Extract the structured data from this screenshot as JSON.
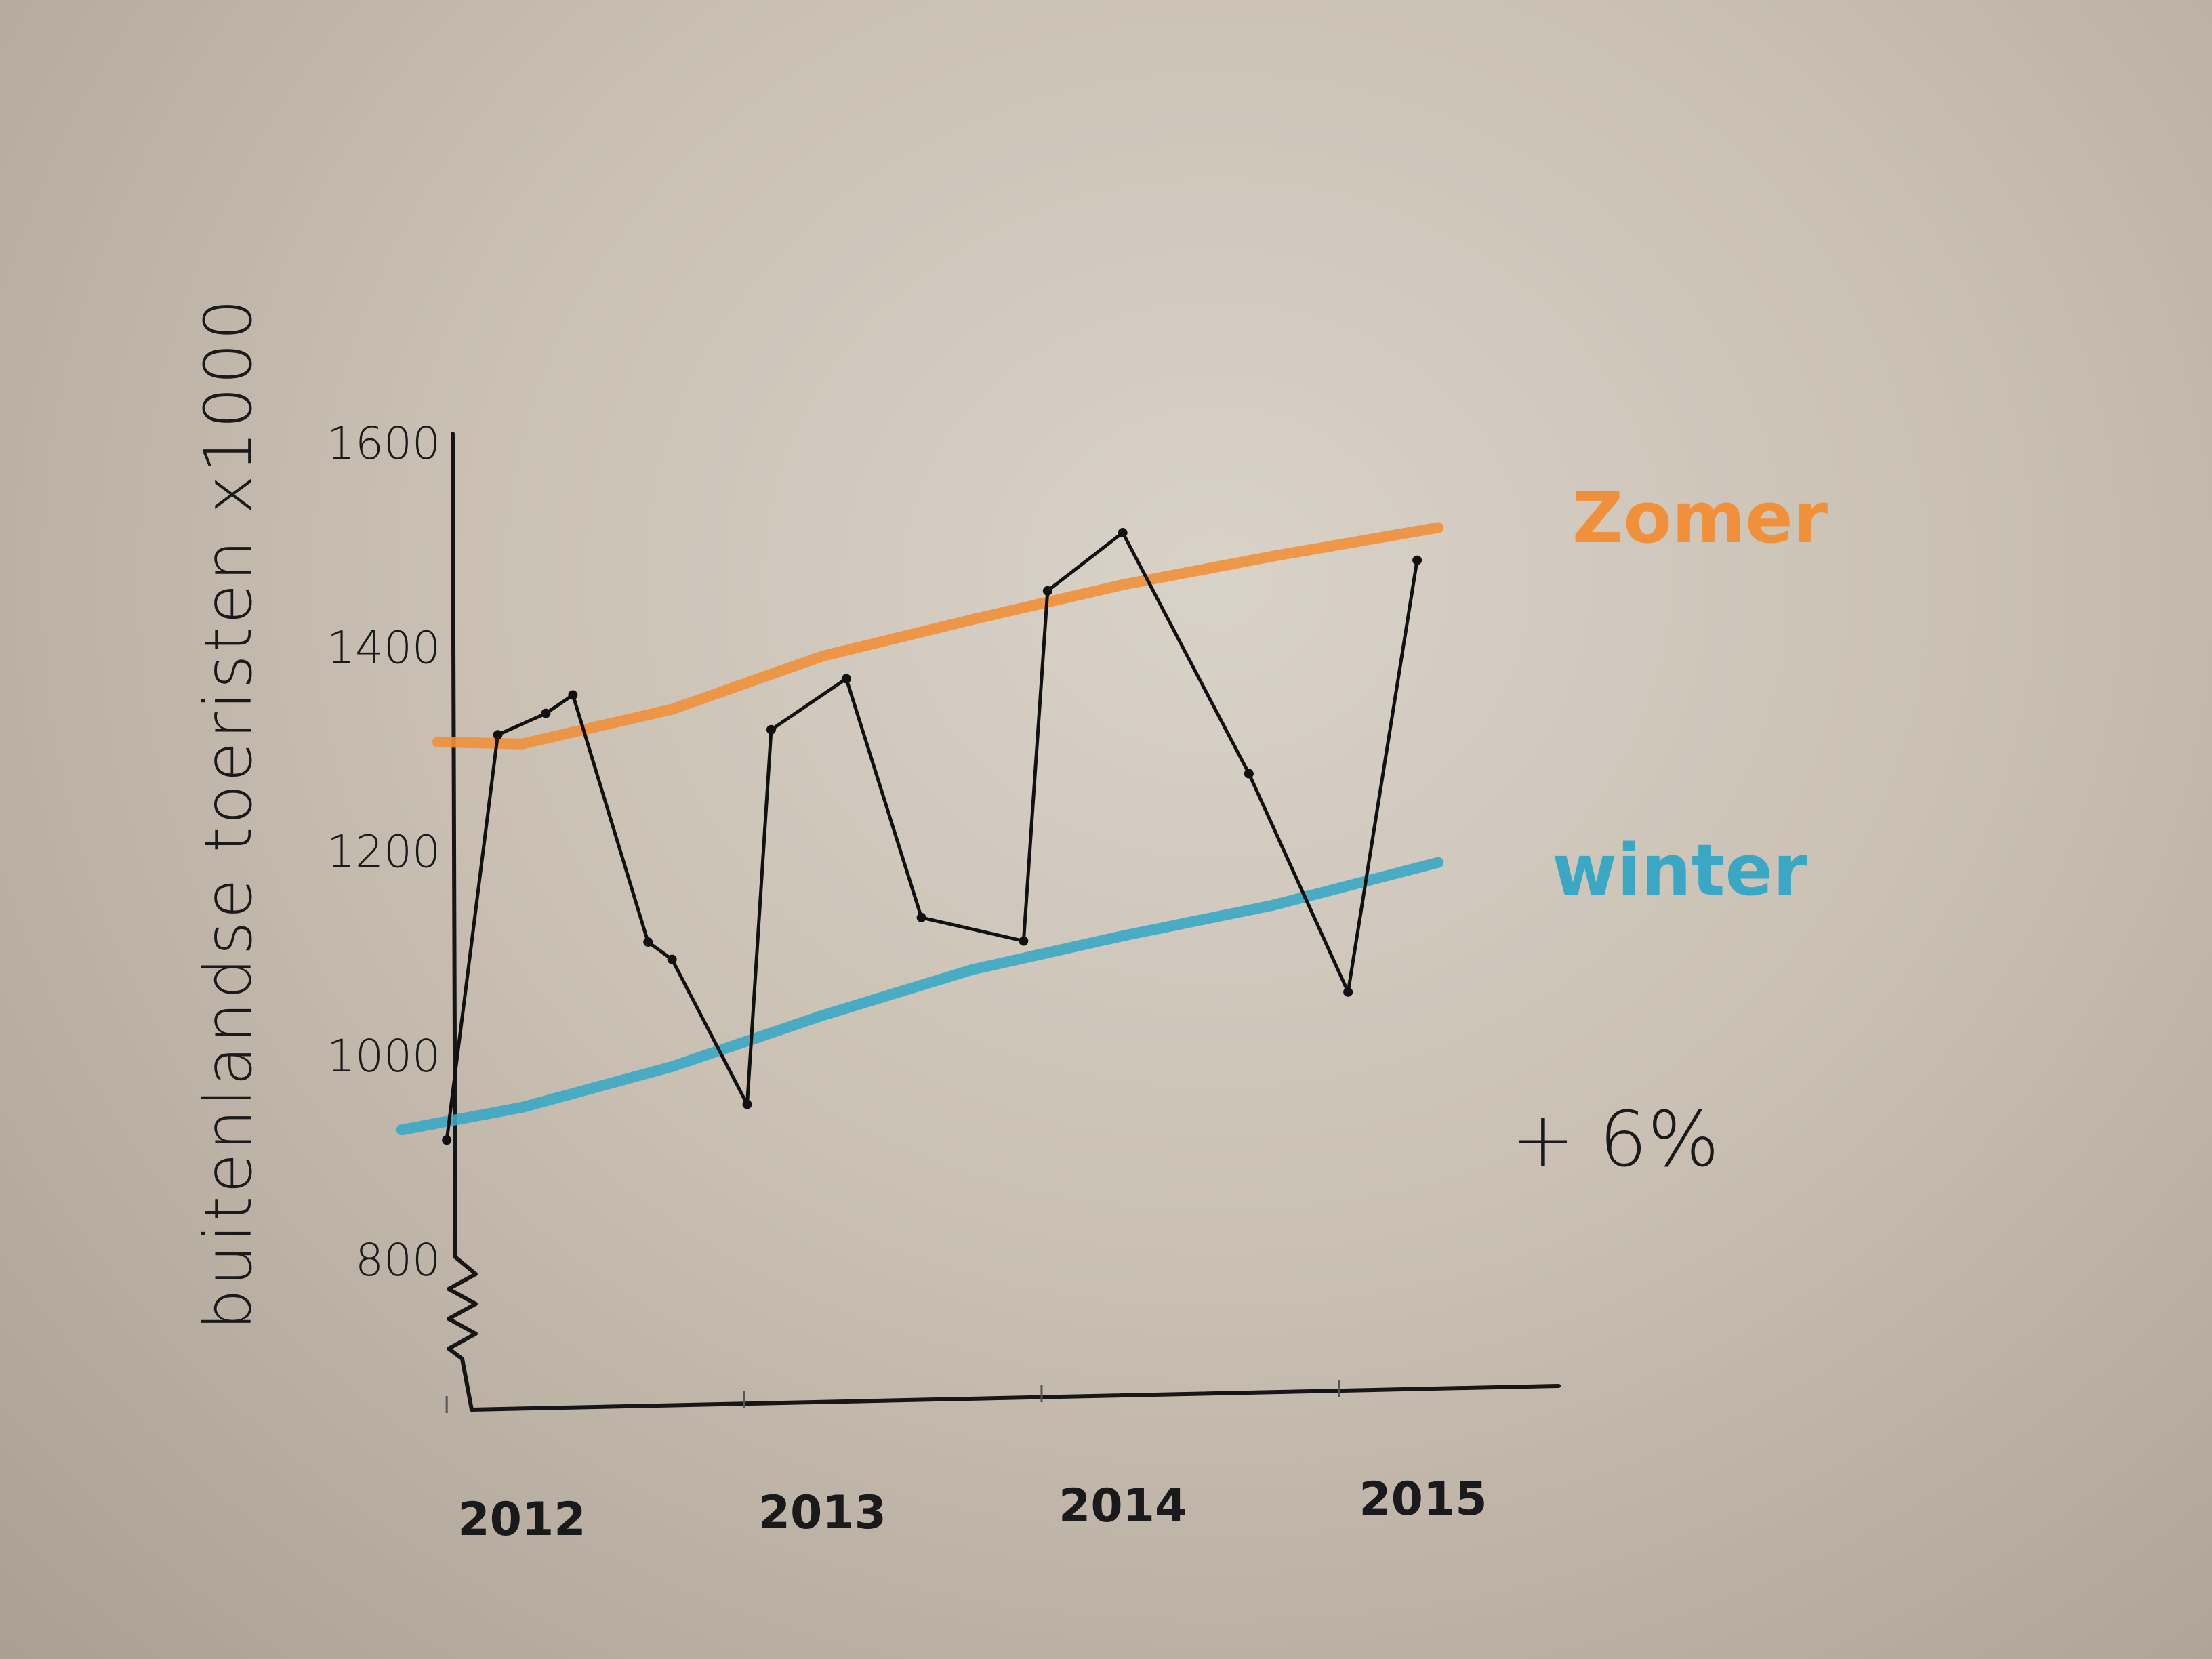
{
  "chart_data": {
    "type": "line",
    "title": "",
    "ylabel": "buitenlandse toeristen x1000",
    "xlabel": "",
    "ylim": [
      800,
      1600
    ],
    "yticks": [
      1600,
      1400,
      1200,
      1000,
      800
    ],
    "xticks": [
      "2012",
      "2013",
      "2014",
      "2015"
    ],
    "xlim": [
      2011.6,
      2015.4
    ],
    "grid": false,
    "axis_break": true,
    "annotation": "+ 6%",
    "series": [
      {
        "name": "",
        "color": "#111111",
        "marker": "dot",
        "x": [
          2011.75,
          2011.92,
          2012.08,
          2012.17,
          2012.42,
          2012.5,
          2012.75,
          2012.83,
          2013.08,
          2013.33,
          2013.67,
          2013.75,
          2014.0,
          2014.42,
          2014.75,
          2014.98
        ],
        "y": [
          918,
          1315,
          1336,
          1354,
          1112,
          1095,
          953,
          1320,
          1370,
          1136,
          1113,
          1456,
          1513,
          1277,
          1063,
          1486
        ]
      },
      {
        "name": "Zomer",
        "color": "#f0903a",
        "marker": "none",
        "x": [
          2011.72,
          2012.0,
          2012.5,
          2013.0,
          2013.5,
          2014.0,
          2014.5,
          2015.05
        ],
        "y": [
          1308,
          1306,
          1340,
          1392,
          1428,
          1462,
          1490,
          1518
        ]
      },
      {
        "name": "winter",
        "color": "#3aa8c4",
        "marker": "none",
        "x": [
          2011.6,
          2012.0,
          2012.5,
          2013.0,
          2013.5,
          2014.0,
          2014.5,
          2015.05
        ],
        "y": [
          928,
          950,
          990,
          1040,
          1085,
          1118,
          1148,
          1190
        ]
      }
    ]
  }
}
